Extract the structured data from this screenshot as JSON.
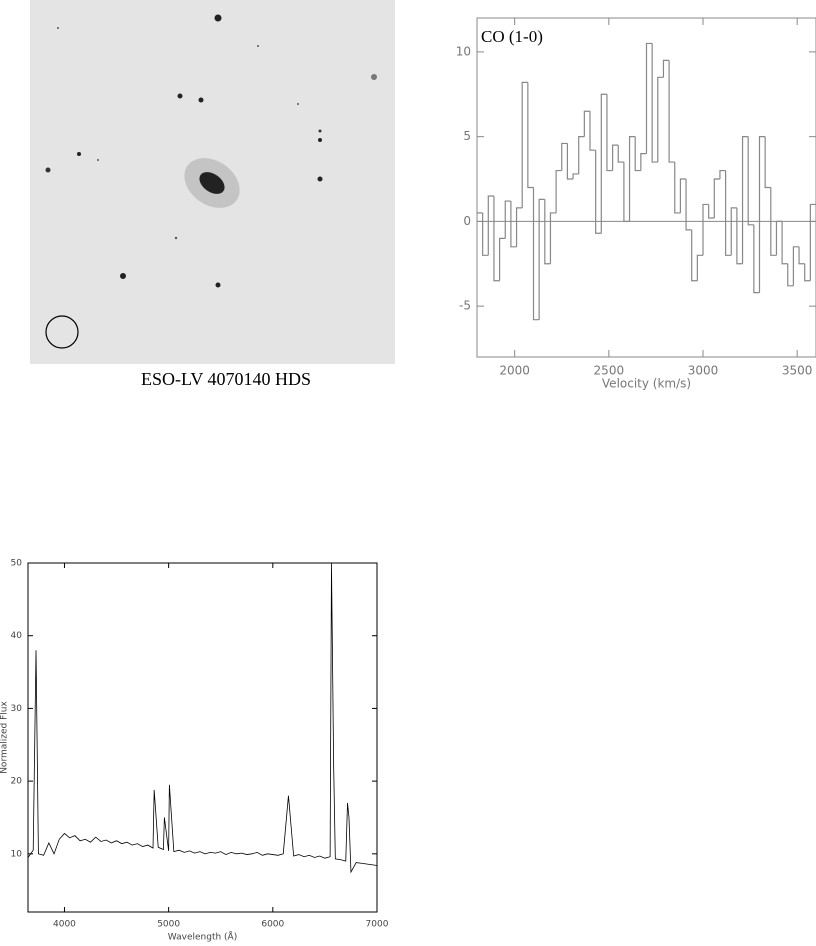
{
  "image_caption": "ESO-LV 4070140 HDS",
  "chart_data": [
    {
      "type": "step",
      "annotation": "CO (1-0)",
      "xlabel": "Velocity (km/s)",
      "color": "#888888",
      "zero_line": true,
      "x": [
        1800,
        1830,
        1860,
        1890,
        1920,
        1950,
        1980,
        2010,
        2040,
        2070,
        2100,
        2130,
        2160,
        2190,
        2220,
        2250,
        2280,
        2310,
        2340,
        2370,
        2400,
        2430,
        2460,
        2490,
        2520,
        2550,
        2580,
        2610,
        2640,
        2670,
        2700,
        2730,
        2760,
        2790,
        2820,
        2850,
        2880,
        2910,
        2940,
        2970,
        3000,
        3030,
        3060,
        3090,
        3120,
        3150,
        3180,
        3210,
        3240,
        3270,
        3300,
        3330,
        3360,
        3390,
        3420,
        3450,
        3480,
        3510,
        3540,
        3570
      ],
      "values": [
        0.5,
        -2,
        1.5,
        -3.5,
        -1,
        1.2,
        -1.5,
        0.8,
        8.2,
        2,
        -5.8,
        1.3,
        -2.5,
        0.5,
        3,
        4.6,
        2.5,
        2.8,
        5,
        6.5,
        4.2,
        -0.7,
        7.5,
        3,
        4.5,
        3.5,
        0,
        5,
        3,
        4,
        10.5,
        3.5,
        8.5,
        9.5,
        3.5,
        0.5,
        2.5,
        -0.5,
        -3.5,
        -2,
        1,
        0.2,
        2.5,
        3,
        -2,
        0.8,
        -2.5,
        5,
        -0.2,
        -4.2,
        5,
        2,
        -2,
        0,
        -2.5,
        -3.8,
        -1.5,
        -2.5,
        -3.5,
        1
      ],
      "xlim": [
        1800,
        3600
      ],
      "ylim": [
        -8,
        12
      ],
      "xticks": [
        2000,
        2500,
        3000,
        3500
      ],
      "yticks": [
        -5,
        0,
        5,
        10
      ]
    },
    {
      "type": "line",
      "xlabel": "Wavelength (Å)",
      "ylabel": "Normalized Flux",
      "color": "#000000",
      "x": [
        3650,
        3700,
        3727,
        3750,
        3800,
        3850,
        3900,
        3950,
        4000,
        4050,
        4100,
        4150,
        4200,
        4250,
        4300,
        4350,
        4400,
        4450,
        4500,
        4550,
        4600,
        4650,
        4700,
        4750,
        4800,
        4850,
        4861,
        4900,
        4950,
        4959,
        5000,
        5007,
        5050,
        5100,
        5150,
        5200,
        5250,
        5300,
        5350,
        5400,
        5450,
        5500,
        5550,
        5600,
        5650,
        5700,
        5750,
        5800,
        5850,
        5900,
        5950,
        6000,
        6050,
        6100,
        6150,
        6200,
        6250,
        6300,
        6350,
        6400,
        6450,
        6500,
        6550,
        6563,
        6584,
        6600,
        6650,
        6700,
        6717,
        6731,
        6750,
        6800,
        6850,
        6900,
        6950,
        7000
      ],
      "values": [
        9.5,
        10.5,
        38,
        10,
        9.8,
        11.5,
        10,
        12,
        12.8,
        12.2,
        12.5,
        11.8,
        12,
        11.6,
        12.3,
        11.7,
        11.9,
        11.5,
        11.8,
        11.4,
        11.6,
        11.2,
        11.4,
        11,
        11.2,
        10.8,
        18.8,
        10.9,
        10.6,
        15,
        10.4,
        19.5,
        10.3,
        10.5,
        10.2,
        10.4,
        10.1,
        10.3,
        10,
        10.2,
        10.1,
        10.3,
        9.9,
        10.2,
        10,
        10.1,
        9.9,
        10,
        10.2,
        9.8,
        10,
        9.9,
        9.8,
        10,
        18,
        9.7,
        9.9,
        9.6,
        9.8,
        9.5,
        9.7,
        9.4,
        9.6,
        50,
        22,
        9.3,
        9.2,
        9,
        17,
        15,
        7.5,
        8.8,
        8.7,
        8.6,
        8.5,
        8.4
      ],
      "xlim": [
        3650,
        7000
      ],
      "ylim": [
        2,
        50
      ],
      "xticks": [
        4000,
        5000,
        6000,
        7000
      ],
      "yticks": [
        10,
        20,
        30,
        40,
        50
      ]
    }
  ]
}
